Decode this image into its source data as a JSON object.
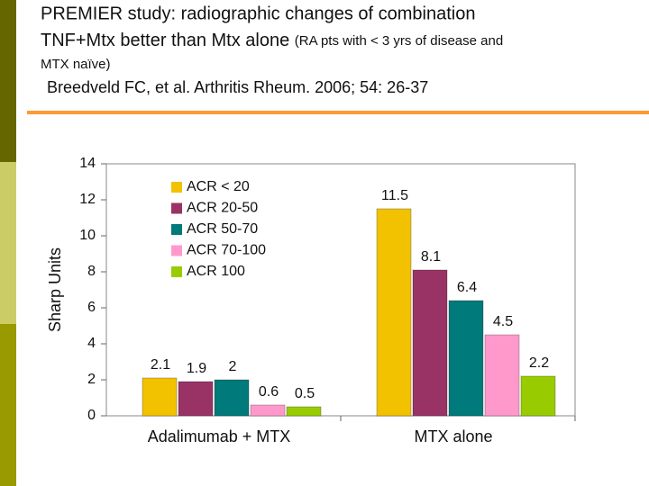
{
  "header": {
    "title_line1": "PREMIER study: radiographic changes of combination",
    "title_line2": "TNF+Mtx better than Mtx alone",
    "title_note_part1": "(RA pts with < 3 yrs of disease and",
    "title_note_part2": "MTX naïve)",
    "citation": "Breedveld FC, et al. Arthritis Rheum. 2006; 54: 26-37"
  },
  "chart_data": {
    "type": "bar",
    "y_label": "Sharp Units",
    "categories": [
      "Adalimumab + MTX",
      "MTX alone"
    ],
    "series": [
      {
        "name": "ACR < 20",
        "color": "#f2c200",
        "values": [
          2.1,
          11.5
        ]
      },
      {
        "name": "ACR 20-50",
        "color": "#993366",
        "values": [
          1.9,
          8.1
        ]
      },
      {
        "name": "ACR 50-70",
        "color": "#007a7a",
        "values": [
          2,
          6.4
        ]
      },
      {
        "name": "ACR 70-100",
        "color": "#ff99cc",
        "values": [
          0.6,
          4.5
        ]
      },
      {
        "name": "ACR 100",
        "color": "#99cc00",
        "values": [
          0.5,
          2.2
        ]
      }
    ],
    "ylim": [
      0,
      14
    ],
    "yticks": [
      0,
      2,
      4,
      6,
      8,
      10,
      12,
      14
    ],
    "grid": false
  }
}
